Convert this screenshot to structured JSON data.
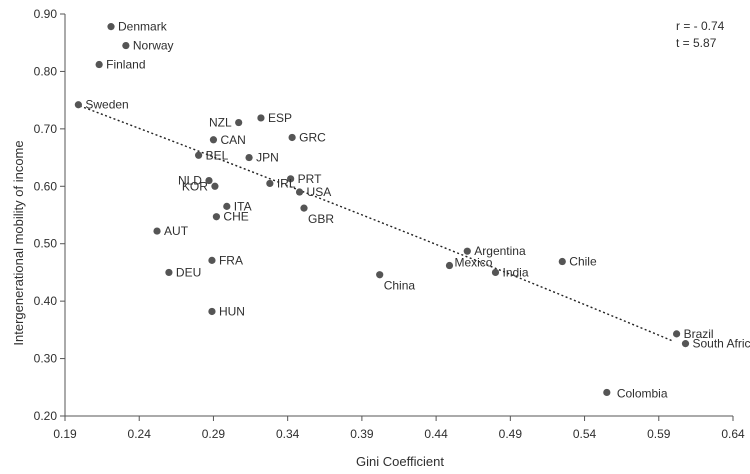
{
  "chart_data": {
    "type": "scatter",
    "title": "",
    "xlabel": "Gini Coefficient",
    "ylabel": "Intergenerational mobility of income",
    "xlim": [
      0.19,
      0.64
    ],
    "ylim": [
      0.2,
      0.9
    ],
    "x_ticks": [
      "0.19",
      "0.24",
      "0.29",
      "0.34",
      "0.39",
      "0.44",
      "0.49",
      "0.54",
      "0.59",
      "0.64"
    ],
    "y_ticks": [
      "0.20",
      "0.30",
      "0.40",
      "0.50",
      "0.60",
      "0.70",
      "0.80",
      "0.90"
    ],
    "grid": false,
    "legend": "none",
    "annotations": [
      "r = - 0.74",
      "t = 5.87"
    ],
    "trendline": {
      "style": "dotted",
      "points": [
        [
          0.2,
          0.74
        ],
        [
          0.4,
          0.54
        ],
        [
          0.6,
          0.33
        ]
      ]
    },
    "points": [
      {
        "label": "Denmark",
        "x": 0.221,
        "y": 0.878
      },
      {
        "label": "Norway",
        "x": 0.231,
        "y": 0.845
      },
      {
        "label": "Finland",
        "x": 0.213,
        "y": 0.812
      },
      {
        "label": "Sweden",
        "x": 0.199,
        "y": 0.742
      },
      {
        "label": "NZL",
        "x": 0.307,
        "y": 0.711
      },
      {
        "label": "ESP",
        "x": 0.322,
        "y": 0.719
      },
      {
        "label": "CAN",
        "x": 0.29,
        "y": 0.681
      },
      {
        "label": "GRC",
        "x": 0.343,
        "y": 0.685
      },
      {
        "label": "BEL",
        "x": 0.28,
        "y": 0.654
      },
      {
        "label": "JPN",
        "x": 0.314,
        "y": 0.65
      },
      {
        "label": "PRT",
        "x": 0.342,
        "y": 0.613
      },
      {
        "label": "NLD",
        "x": 0.287,
        "y": 0.61
      },
      {
        "label": "KOR",
        "x": 0.291,
        "y": 0.6
      },
      {
        "label": "IRL",
        "x": 0.328,
        "y": 0.605
      },
      {
        "label": "USA",
        "x": 0.348,
        "y": 0.59
      },
      {
        "label": "ITA",
        "x": 0.299,
        "y": 0.565
      },
      {
        "label": "GBR",
        "x": 0.351,
        "y": 0.562
      },
      {
        "label": "CHE",
        "x": 0.292,
        "y": 0.547
      },
      {
        "label": "AUT",
        "x": 0.252,
        "y": 0.522
      },
      {
        "label": "FRA",
        "x": 0.289,
        "y": 0.471
      },
      {
        "label": "DEU",
        "x": 0.26,
        "y": 0.45
      },
      {
        "label": "HUN",
        "x": 0.289,
        "y": 0.382
      },
      {
        "label": "China",
        "x": 0.402,
        "y": 0.446
      },
      {
        "label": "Argentina",
        "x": 0.461,
        "y": 0.487
      },
      {
        "label": "Mexico",
        "x": 0.449,
        "y": 0.462
      },
      {
        "label": "India",
        "x": 0.48,
        "y": 0.45
      },
      {
        "label": "Chile",
        "x": 0.525,
        "y": 0.469
      },
      {
        "label": "Brazil",
        "x": 0.602,
        "y": 0.343
      },
      {
        "label": "South Africa",
        "x": 0.608,
        "y": 0.326
      },
      {
        "label": "Colombia",
        "x": 0.555,
        "y": 0.241
      }
    ]
  }
}
